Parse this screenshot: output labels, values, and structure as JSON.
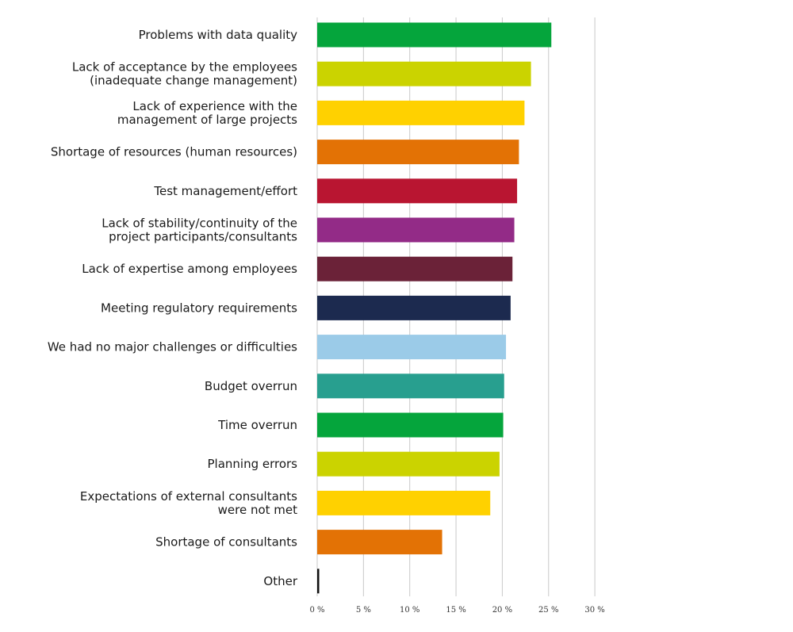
{
  "chart_data": {
    "type": "bar",
    "orientation": "horizontal",
    "title": "",
    "xlabel": "",
    "ylabel": "",
    "xlim": [
      0,
      30
    ],
    "grid": true,
    "categories": [
      [
        "Problems with data quality"
      ],
      [
        "Lack of acceptance by the employees",
        "(inadequate change management)"
      ],
      [
        "Lack of experience with the",
        "management of large projects"
      ],
      [
        "Shortage of resources (human resources)"
      ],
      [
        "Test management/effort"
      ],
      [
        "Lack of stability/continuity of the",
        "project participants/consultants"
      ],
      [
        "Lack of expertise among employees"
      ],
      [
        "Meeting regulatory requirements"
      ],
      [
        "We had no major challenges or difficulties"
      ],
      [
        "Budget overrun"
      ],
      [
        "Time overrun"
      ],
      [
        "Planning errors"
      ],
      [
        "Expectations of external consultants",
        "were not met"
      ],
      [
        "Shortage of consultants"
      ],
      [
        "Other"
      ]
    ],
    "values": [
      25.3,
      23.1,
      22.4,
      21.8,
      21.6,
      21.3,
      21.1,
      20.9,
      20.4,
      20.2,
      20.1,
      19.7,
      18.7,
      13.5,
      0.2
    ],
    "colors": [
      "#05a53c",
      "#cbd300",
      "#ffd100",
      "#e37205",
      "#b91531",
      "#932b87",
      "#6b2238",
      "#1c2a4f",
      "#9bcbe8",
      "#289f8f",
      "#05a53c",
      "#cbd300",
      "#ffd100",
      "#e37205",
      "#111111"
    ],
    "ticks": [
      0,
      5,
      10,
      15,
      20,
      25,
      30
    ],
    "tick_labels": [
      "0 %",
      "5 %",
      "10 %",
      "15 %",
      "20 %",
      "25 %",
      "30 %"
    ]
  }
}
